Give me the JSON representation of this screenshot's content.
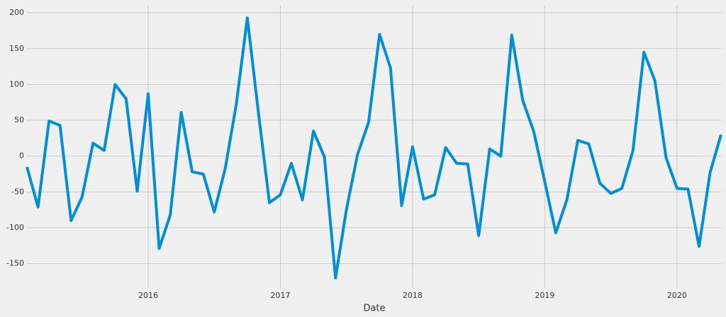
{
  "chart_data": {
    "type": "line",
    "xlabel": "Date",
    "x": [
      2015.083,
      2015.167,
      2015.25,
      2015.333,
      2015.417,
      2015.5,
      2015.583,
      2015.667,
      2015.75,
      2015.833,
      2015.917,
      2016,
      2016.083,
      2016.167,
      2016.25,
      2016.333,
      2016.417,
      2016.5,
      2016.583,
      2016.667,
      2016.75,
      2016.833,
      2016.917,
      2017,
      2017.083,
      2017.167,
      2017.25,
      2017.333,
      2017.417,
      2017.5,
      2017.583,
      2017.667,
      2017.75,
      2017.833,
      2017.917,
      2018,
      2018.083,
      2018.167,
      2018.25,
      2018.333,
      2018.417,
      2018.5,
      2018.583,
      2018.667,
      2018.75,
      2018.833,
      2018.917,
      2019,
      2019.083,
      2019.167,
      2019.25,
      2019.333,
      2019.417,
      2019.5,
      2019.583,
      2019.667,
      2019.75,
      2019.833,
      2019.917,
      2020,
      2020.083,
      2020.167,
      2020.25,
      2020.333
    ],
    "series": [
      {
        "color": "#008fd5",
        "values": [
          -15,
          -71,
          49,
          43,
          -90,
          -57,
          18,
          8,
          100,
          80,
          -49,
          87,
          -129,
          -82,
          61,
          -22,
          -25,
          -78,
          -17,
          73,
          193,
          62,
          -65,
          -54,
          -10,
          -61,
          35,
          -1,
          -170,
          -74,
          2,
          47,
          170,
          123,
          -69,
          13,
          -60,
          -54,
          12,
          -10,
          -11,
          -111,
          10,
          0,
          169,
          78,
          34,
          -36,
          -107,
          -61,
          22,
          17,
          -38,
          -52,
          -45,
          8,
          145,
          105,
          -2,
          -45,
          -46,
          -126,
          -23,
          30
        ]
      }
    ],
    "xlim": [
      2015.083,
      2020.333
    ],
    "xticks": [
      2016,
      2017,
      2018,
      2019,
      2020
    ],
    "ylim": [
      -185,
      210
    ],
    "yticks": [
      -150,
      -100,
      -50,
      0,
      50,
      100,
      150,
      200
    ],
    "grid": true
  }
}
